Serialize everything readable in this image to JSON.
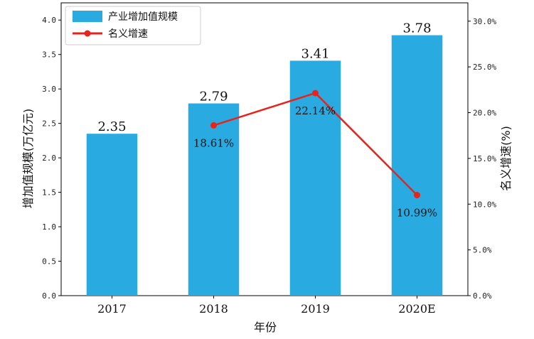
{
  "chart_data": {
    "type": "bar+line",
    "categories": [
      "2017",
      "2018",
      "2019",
      "2020E"
    ],
    "xlabel": "年份",
    "ylabel": "增加值规模(万亿元)",
    "y2label": "名义增速(%)",
    "ylim": [
      0,
      4.25
    ],
    "y2lim": [
      0,
      32.0
    ],
    "yticks": [
      "0.0",
      "0.5",
      "1.0",
      "1.5",
      "2.0",
      "2.5",
      "3.0",
      "3.5",
      "4.0"
    ],
    "y2ticks": [
      "0.0%",
      "5.0%",
      "10.0%",
      "15.0%",
      "20.0%",
      "25.0%",
      "30.0%"
    ],
    "legend_position": "top-left",
    "series": [
      {
        "name": "产业增加值规模",
        "kind": "bar",
        "axis": "left",
        "color": "#29ABE2",
        "values": [
          2.35,
          2.79,
          3.41,
          3.78
        ],
        "labels": [
          "2.35",
          "2.79",
          "3.41",
          "3.78"
        ]
      },
      {
        "name": "名义增速",
        "kind": "line",
        "axis": "right",
        "color": "#E8231C",
        "values": [
          null,
          18.61,
          22.14,
          10.99
        ],
        "labels": [
          "",
          "18.61%",
          "22.14%",
          "10.99%"
        ]
      }
    ]
  }
}
